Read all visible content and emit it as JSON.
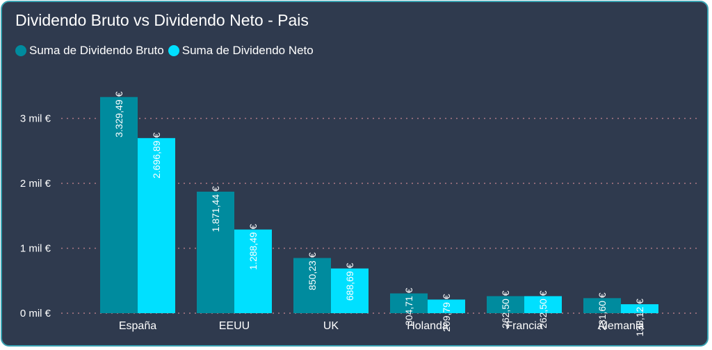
{
  "chart_data": {
    "type": "bar",
    "title": "Dividendo Bruto vs Dividendo Neto - Pais",
    "categories": [
      "España",
      "EEUU",
      "UK",
      "Holanda",
      "Francia",
      "Alemania"
    ],
    "series": [
      {
        "name": "Suma de Dividendo Bruto",
        "color": "#008b9e",
        "values": [
          3329.49,
          1871.44,
          850.23,
          304.71,
          262.5,
          231.6
        ],
        "labels": [
          "3.329,49 €",
          "1.871,44 €",
          "850,23 €",
          "304,71 €",
          "262,50 €",
          "231,60 €"
        ]
      },
      {
        "name": "Suma de Dividendo Neto",
        "color": "#00e0ff",
        "values": [
          2696.89,
          1288.49,
          688.69,
          209.79,
          262.5,
          138.12
        ],
        "labels": [
          "2.696,89 €",
          "1.288,49 €",
          "688,69 €",
          "209,79 €",
          "262,50 €",
          "138,12 €"
        ]
      }
    ],
    "yticks": [
      0,
      1000,
      2000,
      3000
    ],
    "ytick_labels": [
      "0 mil €",
      "1 mil €",
      "2 mil €",
      "3 mil €"
    ],
    "ylim": [
      0,
      3700
    ],
    "grid": true,
    "gridline_color": "#b07a86",
    "legend_position": "top-left"
  }
}
